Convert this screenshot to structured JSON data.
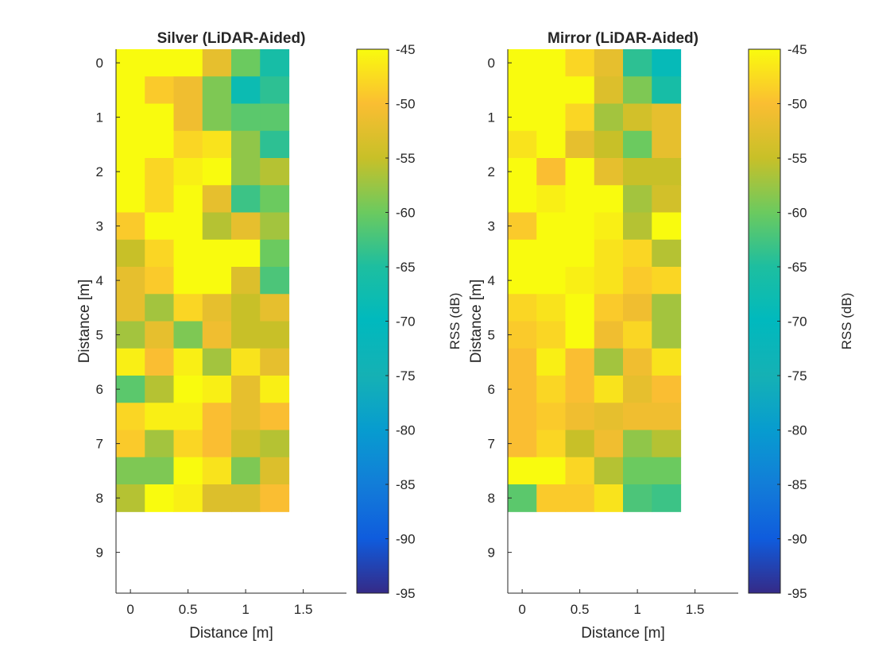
{
  "chart_data": [
    {
      "type": "heatmap",
      "title": "Silver (LiDAR-Aided)",
      "xlabel": "Distance [m]",
      "ylabel": "Distance [m]",
      "x_ticks": [
        "0",
        "0.5",
        "1",
        "1.5"
      ],
      "y_ticks": [
        "0",
        "1",
        "2",
        "3",
        "4",
        "5",
        "6",
        "7",
        "8",
        "9"
      ],
      "x_range": [
        -0.125,
        1.875
      ],
      "y_range": [
        -0.25,
        9.75
      ],
      "x_step": 0.25,
      "y_step": 0.5,
      "colorbar_label": "RSS (dB)",
      "colorbar_ticks": [
        "-45",
        "-50",
        "-55",
        "-60",
        "-65",
        "-70",
        "-75",
        "-80",
        "-85",
        "-90",
        "-95"
      ],
      "clim": [
        -95,
        -45
      ],
      "values": [
        [
          -45,
          -45,
          -45,
          -52,
          -60,
          -66
        ],
        [
          -45,
          -49,
          -51,
          -59,
          -68,
          -64
        ],
        [
          -45,
          -45,
          -51,
          -59,
          -61,
          -61
        ],
        [
          -45,
          -45,
          -48,
          -47,
          -58,
          -64
        ],
        [
          -45,
          -48,
          -46,
          -45,
          -58,
          -56
        ],
        [
          -45,
          -48,
          -45,
          -52,
          -63,
          -60
        ],
        [
          -49,
          -45,
          -45,
          -56,
          -52,
          -57
        ],
        [
          -55,
          -48,
          -45,
          -45,
          -45,
          -60
        ],
        [
          -52,
          -49,
          -45,
          -45,
          -53,
          -62
        ],
        [
          -52,
          -57,
          -48,
          -52,
          -55,
          -52
        ],
        [
          -57,
          -52,
          -59,
          -51,
          -55,
          -55
        ],
        [
          -46,
          -50,
          -46,
          -57,
          -47,
          -52
        ],
        [
          -61,
          -56,
          -45,
          -46,
          -52,
          -46
        ],
        [
          -48,
          -46,
          -46,
          -50,
          -52,
          -50
        ],
        [
          -49,
          -57,
          -48,
          -50,
          -54,
          -56
        ],
        [
          -59,
          -59,
          -45,
          -47,
          -59,
          -53
        ],
        [
          -56,
          -45,
          -46,
          -53,
          -53,
          -50
        ]
      ]
    },
    {
      "type": "heatmap",
      "title": "Mirror (LiDAR-Aided)",
      "xlabel": "Distance [m]",
      "ylabel": "Distance [m]",
      "x_ticks": [
        "0",
        "0.5",
        "1",
        "1.5"
      ],
      "y_ticks": [
        "0",
        "1",
        "2",
        "3",
        "4",
        "5",
        "6",
        "7",
        "8",
        "9"
      ],
      "x_range": [
        -0.125,
        1.875
      ],
      "y_range": [
        -0.25,
        9.75
      ],
      "x_step": 0.25,
      "y_step": 0.5,
      "colorbar_label": "RSS (dB)",
      "colorbar_ticks": [
        "-45",
        "-50",
        "-55",
        "-60",
        "-65",
        "-70",
        "-75",
        "-80",
        "-85",
        "-90",
        "-95"
      ],
      "clim": [
        -95,
        -45
      ],
      "values": [
        [
          -45,
          -45,
          -48,
          -52,
          -64,
          -69
        ],
        [
          -45,
          -45,
          -45,
          -53,
          -59,
          -66
        ],
        [
          -45,
          -45,
          -48,
          -57,
          -54,
          -52
        ],
        [
          -47,
          -45,
          -52,
          -55,
          -60,
          -52
        ],
        [
          -45,
          -50,
          -45,
          -52,
          -55,
          -55
        ],
        [
          -45,
          -46,
          -45,
          -45,
          -57,
          -54
        ],
        [
          -49,
          -45,
          -45,
          -46,
          -56,
          -45
        ],
        [
          -45,
          -45,
          -45,
          -47,
          -48,
          -56
        ],
        [
          -45,
          -45,
          -46,
          -47,
          -49,
          -48
        ],
        [
          -48,
          -47,
          -45,
          -49,
          -51,
          -57
        ],
        [
          -49,
          -48,
          -45,
          -51,
          -48,
          -57
        ],
        [
          -50,
          -46,
          -50,
          -57,
          -51,
          -47
        ],
        [
          -50,
          -48,
          -50,
          -47,
          -52,
          -50
        ],
        [
          -50,
          -49,
          -51,
          -52,
          -51,
          -51
        ],
        [
          -50,
          -48,
          -55,
          -51,
          -58,
          -56
        ],
        [
          -45,
          -45,
          -48,
          -56,
          -60,
          -60
        ],
        [
          -61,
          -49,
          -49,
          -47,
          -62,
          -63
        ]
      ]
    }
  ]
}
